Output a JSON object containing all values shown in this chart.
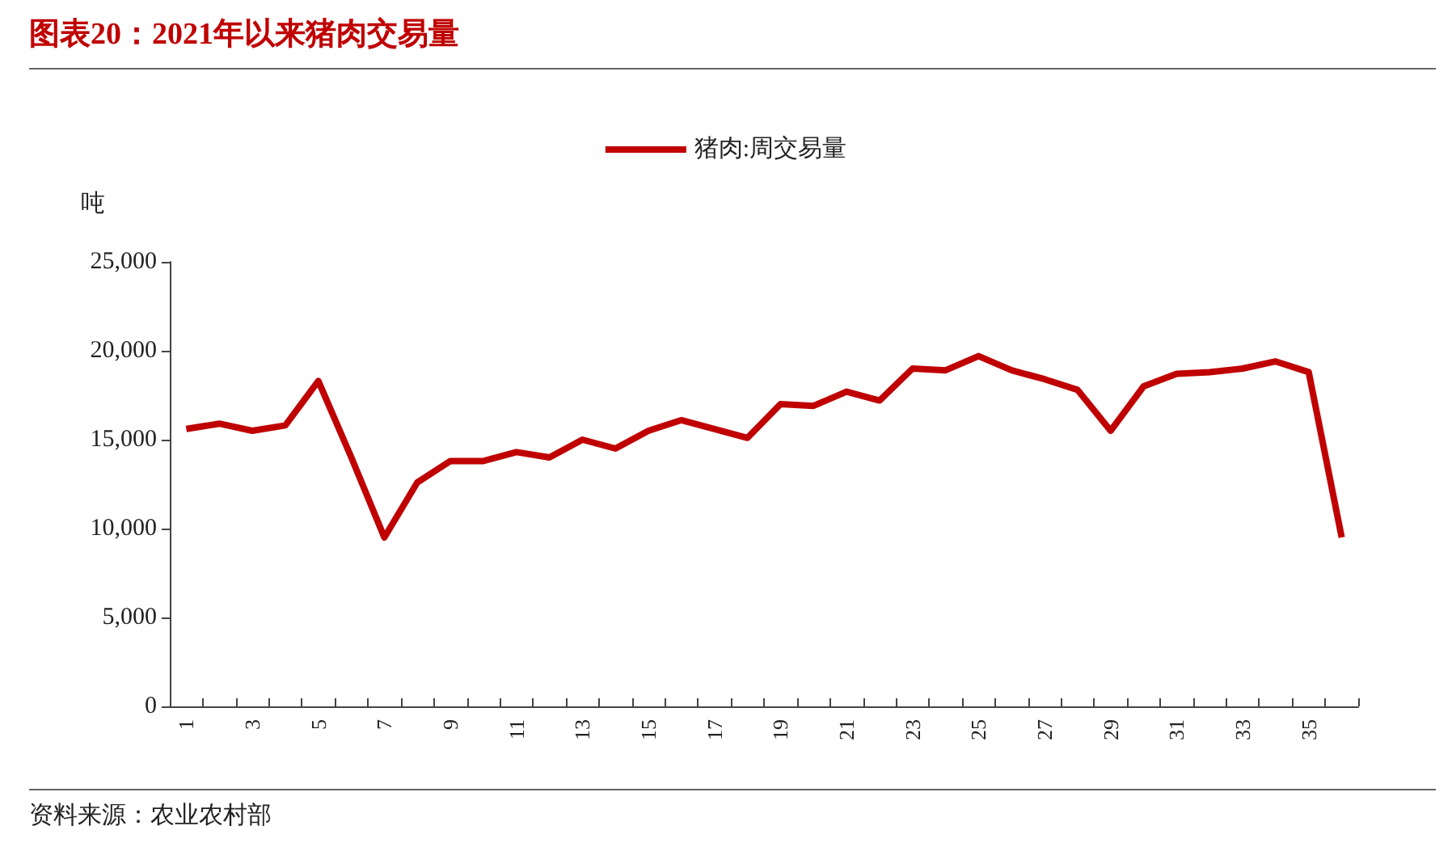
{
  "chart_data": {
    "type": "line",
    "title": "图表20：2021年以来猪肉交易量",
    "ylabel": "吨",
    "categories": [
      "1",
      null,
      "3",
      null,
      "5",
      null,
      "7",
      null,
      "9",
      null,
      "11",
      null,
      "13",
      null,
      "15",
      null,
      "17",
      null,
      "19",
      null,
      "21",
      null,
      "23",
      null,
      "25",
      null,
      "27",
      null,
      "29",
      null,
      "31",
      null,
      "33",
      null,
      "35",
      null
    ],
    "series": [
      {
        "name": "猪肉:周交易量",
        "color": "#c00000",
        "values": [
          15600,
          15900,
          15500,
          15800,
          18300,
          14000,
          9500,
          12600,
          13800,
          13800,
          14300,
          14000,
          15000,
          14500,
          15500,
          16100,
          15600,
          15100,
          17000,
          16900,
          17700,
          17200,
          19000,
          18900,
          19700,
          18900,
          18400,
          17800,
          15500,
          18000,
          18700,
          18800,
          19000,
          19400,
          18800,
          9500
        ]
      }
    ],
    "ylim": [
      0,
      25000
    ],
    "yticks": [
      0,
      {
        "value": 5000,
        "label": "5,000"
      },
      {
        "value": 10000,
        "label": "10,000"
      },
      {
        "value": 15000,
        "label": "15,000"
      },
      {
        "value": 20000,
        "label": "20,000"
      },
      {
        "value": 25000,
        "label": "25,000"
      }
    ],
    "grid": false,
    "legend": "top",
    "marker": "none",
    "line_style": "solid",
    "annotations": [
      "资料来源：农业农村部"
    ]
  }
}
